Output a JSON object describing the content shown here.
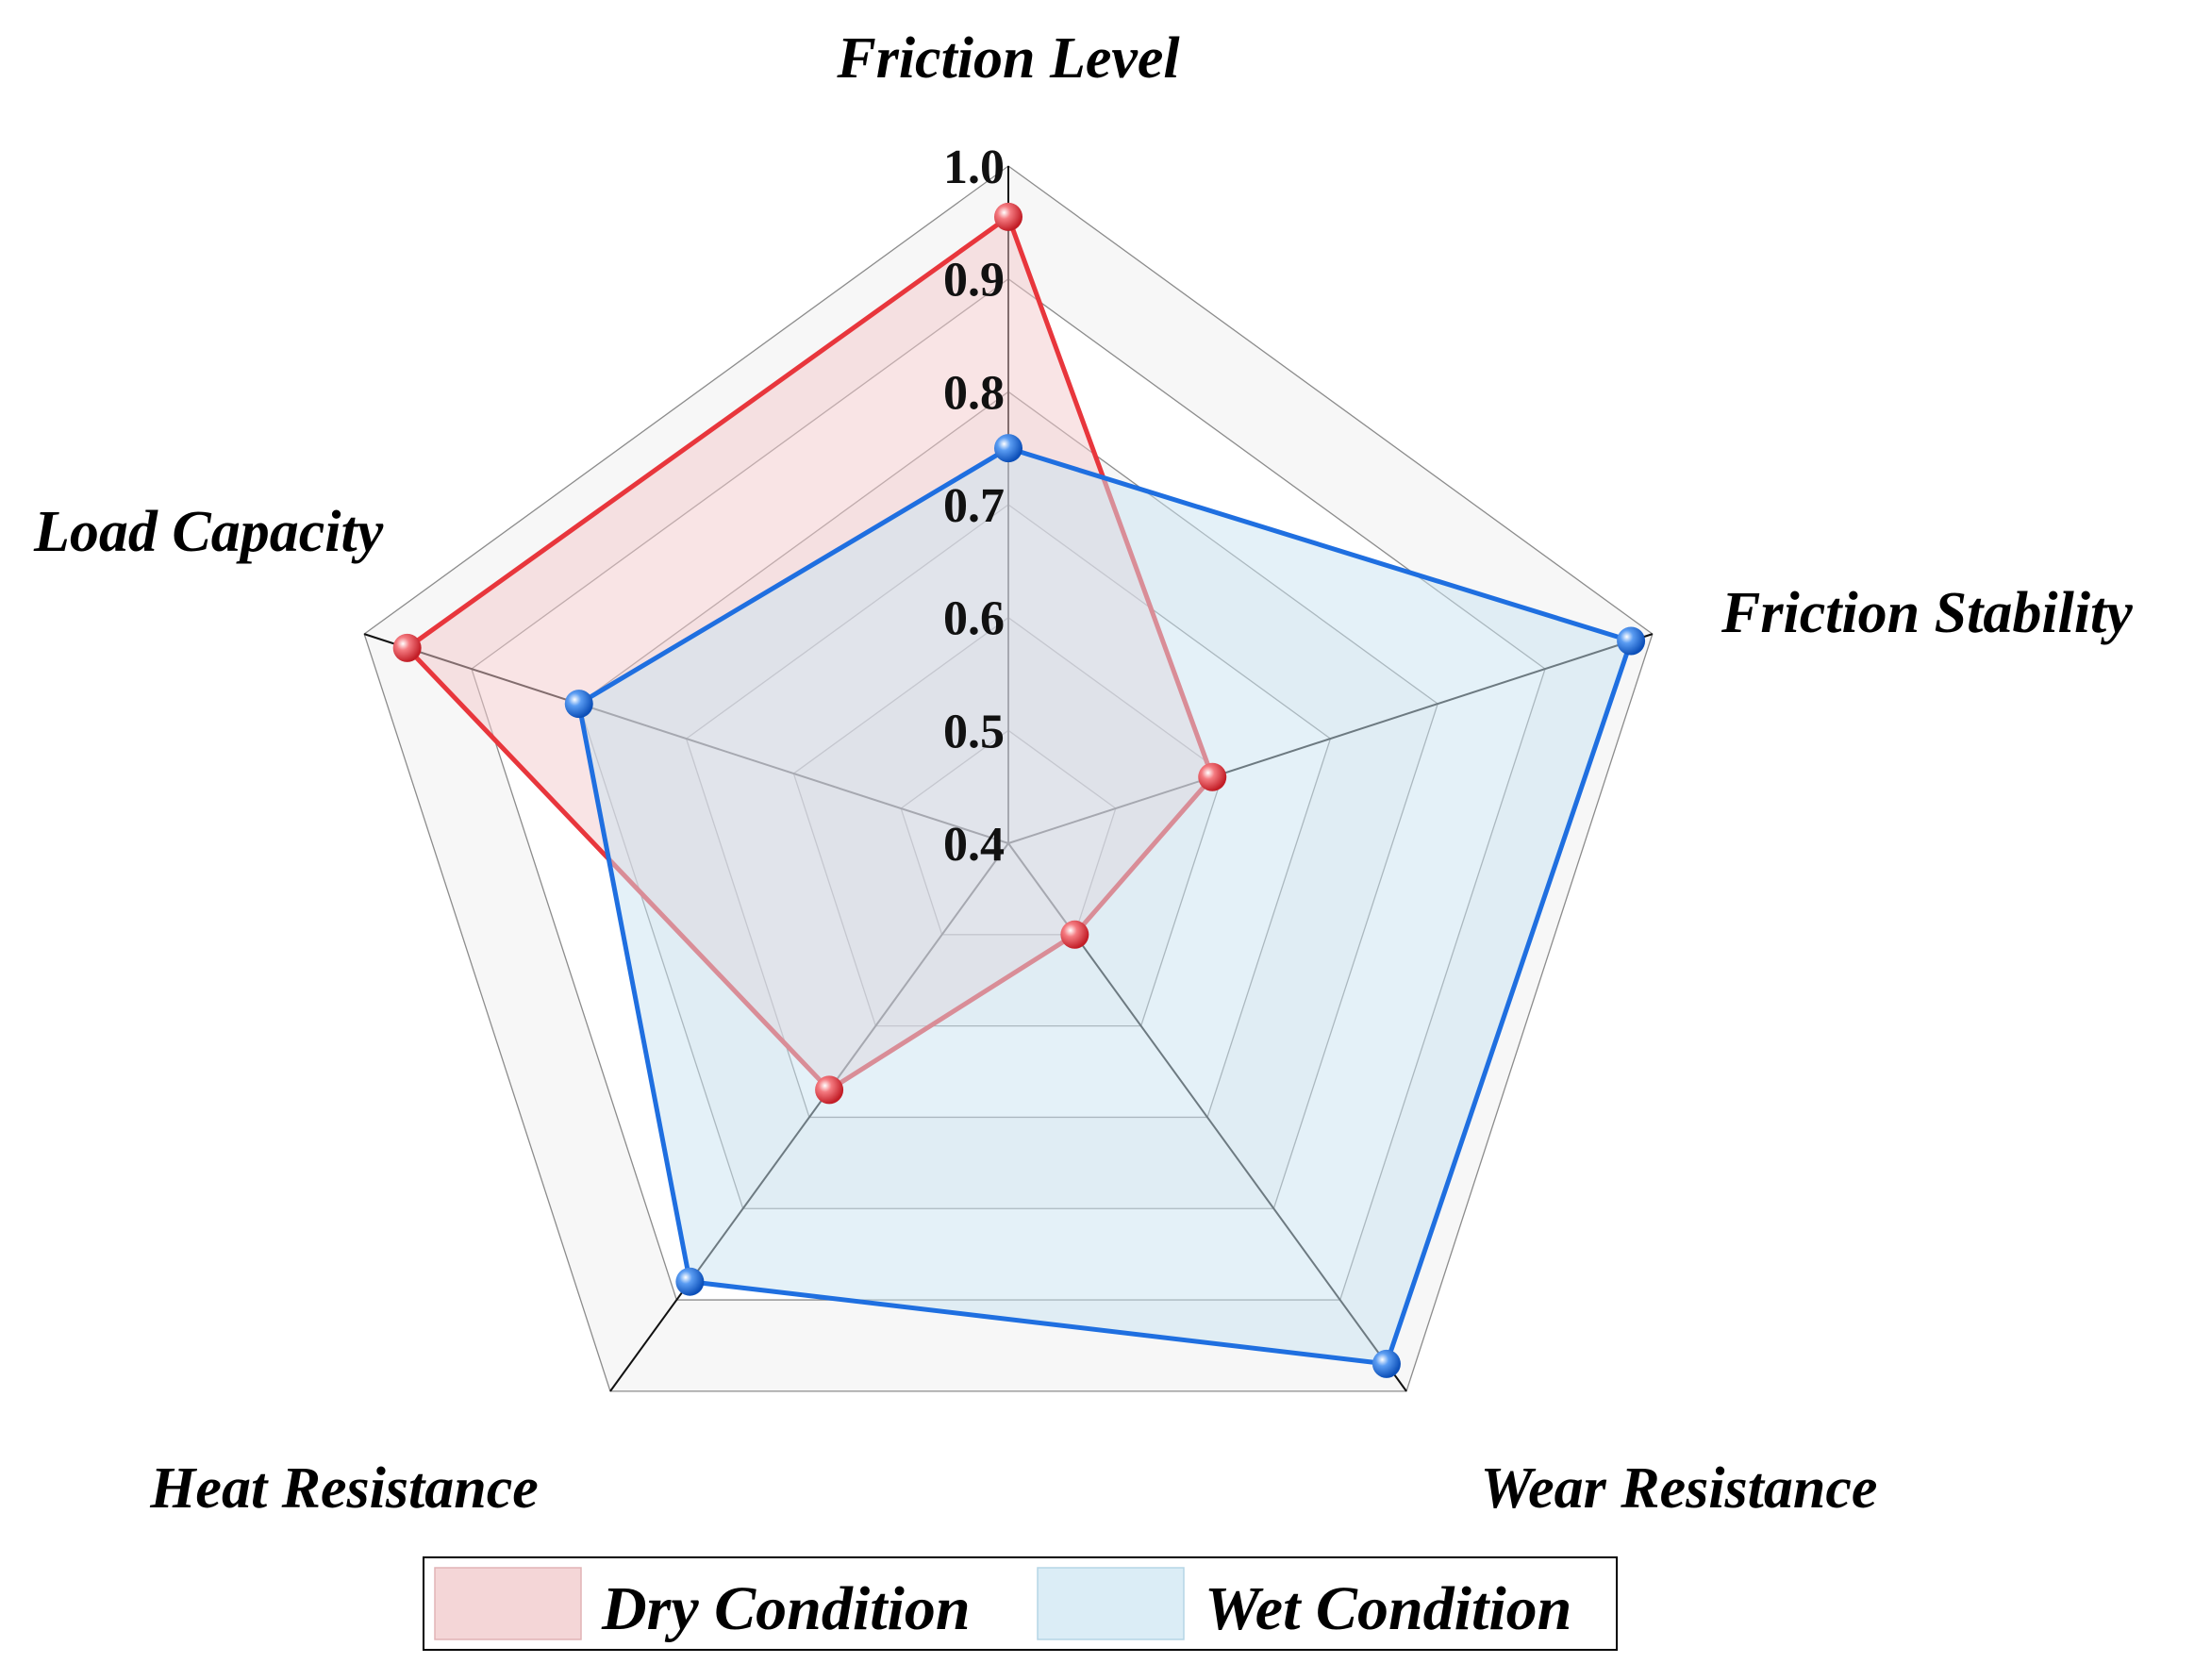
{
  "chart_data": {
    "type": "radar",
    "axes": [
      "Friction Level",
      "Friction Stability",
      "Wear Resistance",
      "Heat Resistance",
      "Load Capacity"
    ],
    "r_range": [
      0.4,
      1.0
    ],
    "r_ticks": [
      "0.4",
      "0.5",
      "0.6",
      "0.7",
      "0.8",
      "0.9",
      "1.0"
    ],
    "r_tick_values": [
      0.4,
      0.5,
      0.6,
      0.7,
      0.8,
      0.9,
      1.0
    ],
    "grid": true,
    "legend_position": "bottom",
    "series": [
      {
        "name": "Dry Condition",
        "values": [
          0.955,
          0.59,
          0.5,
          0.67,
          0.96
        ],
        "color": "#e8363c",
        "fill": "#f4c9cc"
      },
      {
        "name": "Wet Condition",
        "values": [
          0.75,
          0.98,
          0.97,
          0.88,
          0.8
        ],
        "color": "#1f6fe0",
        "fill": "#c9e4f2"
      }
    ]
  }
}
